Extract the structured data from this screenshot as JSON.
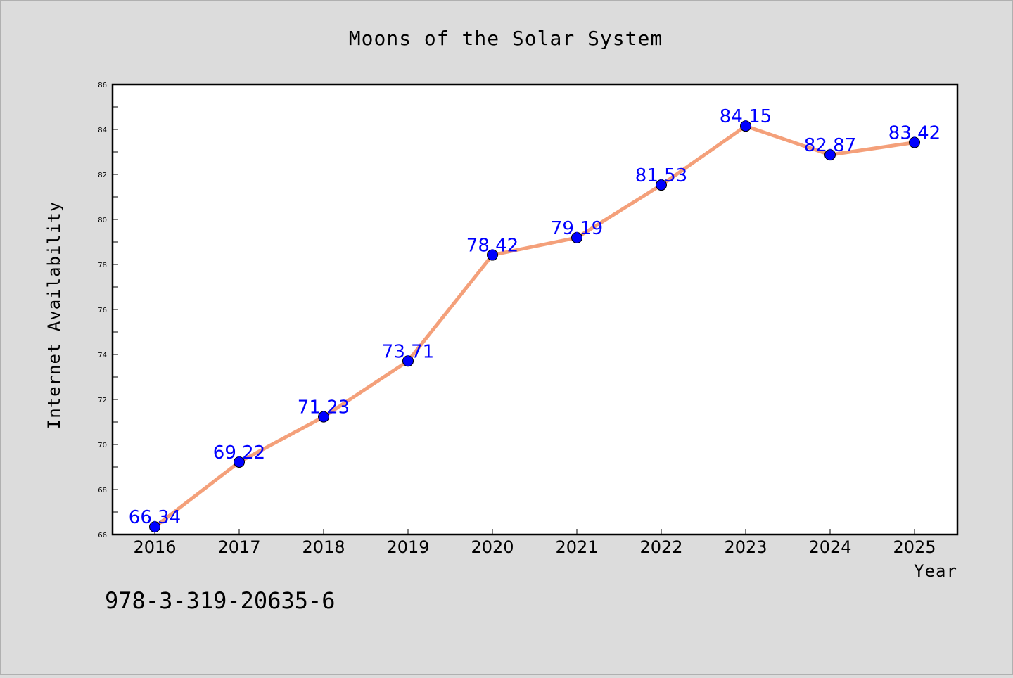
{
  "chart_data": {
    "type": "line",
    "title": "Moons of the Solar System",
    "xlabel": "Year",
    "ylabel": "Internet Availability",
    "x": [
      "2016",
      "2017",
      "2018",
      "2019",
      "2020",
      "2021",
      "2022",
      "2023",
      "2024",
      "2025"
    ],
    "series": [
      {
        "values": [
          66.34,
          69.22,
          71.23,
          73.71,
          78.42,
          79.19,
          81.53,
          84.15,
          82.87,
          83.42
        ],
        "labels": [
          "66.34",
          "69.22",
          "71.23",
          "73.71",
          "78.42",
          "79.19",
          "81.53",
          "84.15",
          "82.87",
          "83.42"
        ],
        "line_color": "#f4a07a",
        "marker_color": "#0000ff"
      }
    ],
    "ylim": [
      66,
      86
    ],
    "yticks": [
      "66",
      "68",
      "70",
      "72",
      "74",
      "76",
      "78",
      "80",
      "82",
      "84",
      "86"
    ],
    "grid": false,
    "legend": "none"
  },
  "footer_text": "978-3-319-20635-6"
}
